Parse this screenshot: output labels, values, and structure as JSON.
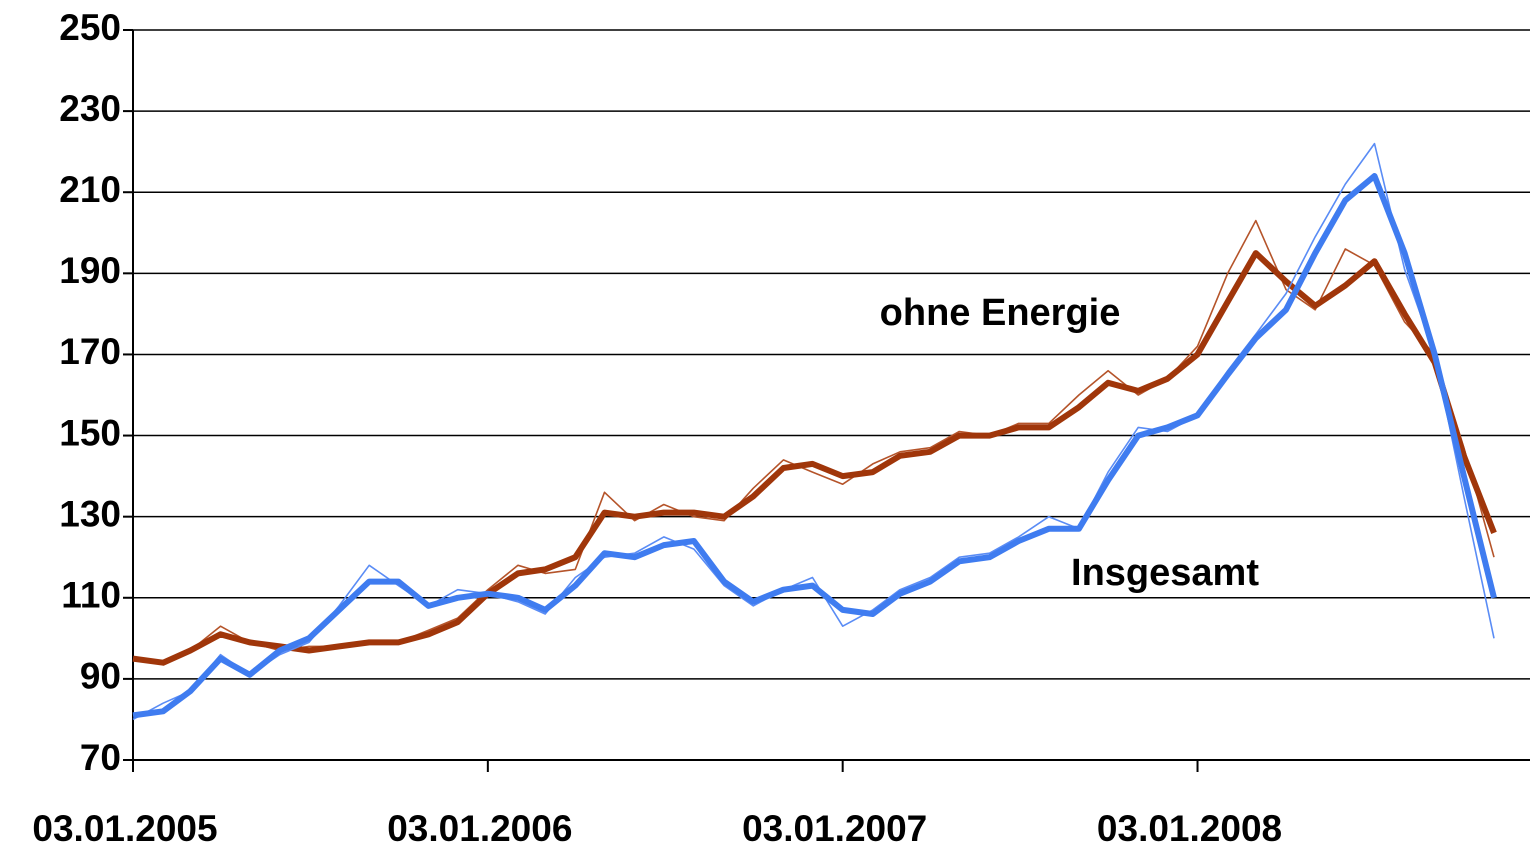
{
  "chart_data": {
    "type": "line",
    "x": [
      "03.01.2005",
      "03.02.2005",
      "03.03.2005",
      "03.04.2005",
      "03.05.2005",
      "03.06.2005",
      "03.07.2005",
      "03.08.2005",
      "03.09.2005",
      "03.10.2005",
      "03.11.2005",
      "03.12.2005",
      "03.01.2006",
      "03.02.2006",
      "03.03.2006",
      "03.04.2006",
      "03.05.2006",
      "03.06.2006",
      "03.07.2006",
      "03.08.2006",
      "03.09.2006",
      "03.10.2006",
      "03.11.2006",
      "03.12.2006",
      "03.01.2007",
      "03.02.2007",
      "03.03.2007",
      "03.04.2007",
      "03.05.2007",
      "03.06.2007",
      "03.07.2007",
      "03.08.2007",
      "03.09.2007",
      "03.10.2007",
      "03.11.2007",
      "03.12.2007",
      "03.01.2008",
      "03.02.2008",
      "03.03.2008",
      "03.04.2008",
      "03.05.2008",
      "03.06.2008",
      "03.07.2008",
      "03.08.2008",
      "03.09.2008",
      "03.10.2008",
      "03.11.2008"
    ],
    "series": [
      {
        "name": "ohne Energie",
        "color": "#a0360a",
        "raw_color": "#b5542a",
        "values": [
          95,
          94,
          97,
          103,
          99,
          97,
          98,
          98,
          99,
          99,
          102,
          105,
          112,
          118,
          116,
          117,
          136,
          129,
          133,
          130,
          129,
          137,
          144,
          141,
          138,
          143,
          146,
          147,
          151,
          150,
          153,
          153,
          160,
          166,
          160,
          164,
          172,
          190,
          203,
          186,
          181,
          196,
          192,
          178,
          170,
          147,
          120
        ],
        "trend": [
          95,
          94,
          97,
          101,
          99,
          98,
          97,
          98,
          99,
          99,
          101,
          104,
          111,
          116,
          117,
          120,
          131,
          130,
          131,
          131,
          130,
          135,
          142,
          143,
          140,
          141,
          145,
          146,
          150,
          150,
          152,
          152,
          157,
          163,
          161,
          164,
          170,
          183,
          195,
          188,
          182,
          187,
          193,
          180,
          168,
          145,
          126
        ]
      },
      {
        "name": "Insgesamt",
        "color": "#3f7cf0",
        "raw_color": "#5a8cf5",
        "values": [
          80,
          84,
          87,
          96,
          91,
          96,
          99,
          108,
          118,
          113,
          108,
          112,
          111,
          109,
          106,
          115,
          120,
          121,
          125,
          122,
          113,
          108,
          112,
          115,
          103,
          107,
          112,
          115,
          120,
          121,
          125,
          130,
          127,
          141,
          152,
          151,
          155,
          166,
          175,
          185,
          199,
          212,
          222,
          191,
          170,
          135,
          100
        ],
        "trend": [
          81,
          82,
          87,
          95,
          91,
          97,
          100,
          107,
          114,
          114,
          108,
          110,
          111,
          110,
          107,
          113,
          121,
          120,
          123,
          124,
          114,
          109,
          112,
          113,
          107,
          106,
          111,
          114,
          119,
          120,
          124,
          127,
          127,
          139,
          150,
          152,
          155,
          165,
          174,
          181,
          195,
          208,
          214,
          195,
          170,
          140,
          110
        ]
      }
    ],
    "xlim": [
      "03.01.2005",
      "10.12.2008"
    ],
    "xticks": [
      "03.01.2005",
      "03.01.2006",
      "03.01.2007",
      "03.01.2008"
    ],
    "ylim": [
      70,
      250
    ],
    "yticks": [
      70,
      90,
      110,
      130,
      150,
      170,
      190,
      210,
      230,
      250
    ],
    "grid": true
  }
}
